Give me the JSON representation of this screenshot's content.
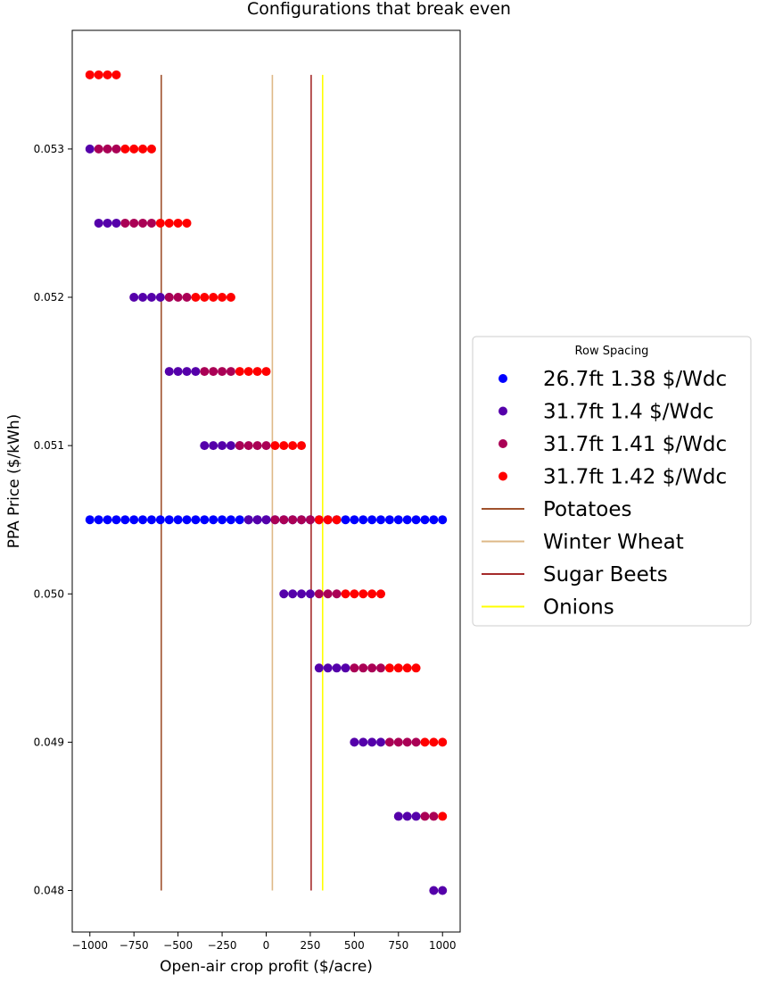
{
  "chart_data": {
    "type": "scatter",
    "title": "Configurations that break even",
    "xlabel": "Open-air crop profit ($/acre)",
    "ylabel": "PPA Price ($/kWh)",
    "xlim": [
      -1100,
      1100
    ],
    "ylim": [
      0.04772,
      0.0538
    ],
    "x_ticks": [
      -1000,
      -750,
      -500,
      -250,
      0,
      250,
      500,
      750,
      1000
    ],
    "x_tick_labels": [
      "−1000",
      "−750",
      "−500",
      "−250",
      "0",
      "250",
      "500",
      "750",
      "1000"
    ],
    "y_ticks": [
      0.048,
      0.049,
      0.05,
      0.051,
      0.052,
      0.053
    ],
    "y_tick_labels": [
      "0.048",
      "0.049",
      "0.050",
      "0.051",
      "0.052",
      "0.053"
    ],
    "grid": false,
    "legend": {
      "title": "Row Spacing",
      "placement": "center-right outside"
    },
    "series": [
      {
        "name": "26.7ft 1.38 $/Wdc",
        "color": "#0000ff",
        "points": [
          {
            "y": 0.0505,
            "x_start": -1000,
            "x_end": 1000,
            "step": 50
          }
        ]
      },
      {
        "name": "31.7ft 1.4 $/Wdc",
        "color": "#5500aa",
        "points": [
          {
            "y": 0.053,
            "x_start": -1000,
            "x_end": -1000,
            "step": 50
          },
          {
            "y": 0.0525,
            "x_start": -950,
            "x_end": -850,
            "step": 50
          },
          {
            "y": 0.052,
            "x_start": -750,
            "x_end": -550,
            "step": 50
          },
          {
            "y": 0.0515,
            "x_start": -550,
            "x_end": -400,
            "step": 50
          },
          {
            "y": 0.051,
            "x_start": -350,
            "x_end": -150,
            "step": 50
          },
          {
            "y": 0.0505,
            "x_start": -100,
            "x_end": 0,
            "step": 50
          },
          {
            "y": 0.05,
            "x_start": 100,
            "x_end": 250,
            "step": 50
          },
          {
            "y": 0.0495,
            "x_start": 300,
            "x_end": 450,
            "step": 50
          },
          {
            "y": 0.049,
            "x_start": 500,
            "x_end": 650,
            "step": 50
          },
          {
            "y": 0.0485,
            "x_start": 750,
            "x_end": 850,
            "step": 50
          },
          {
            "y": 0.048,
            "x_start": 950,
            "x_end": 1000,
            "step": 50
          }
        ]
      },
      {
        "name": "31.7ft 1.41 $/Wdc",
        "color": "#aa0055",
        "points": [
          {
            "y": 0.053,
            "x_start": -950,
            "x_end": -850,
            "step": 50
          },
          {
            "y": 0.0525,
            "x_start": -800,
            "x_end": -650,
            "step": 50
          },
          {
            "y": 0.052,
            "x_start": -550,
            "x_end": -450,
            "step": 50
          },
          {
            "y": 0.0515,
            "x_start": -350,
            "x_end": -200,
            "step": 50
          },
          {
            "y": 0.051,
            "x_start": -150,
            "x_end": 0,
            "step": 50
          },
          {
            "y": 0.0505,
            "x_start": 50,
            "x_end": 250,
            "step": 50
          },
          {
            "y": 0.05,
            "x_start": 300,
            "x_end": 400,
            "step": 50
          },
          {
            "y": 0.0495,
            "x_start": 500,
            "x_end": 650,
            "step": 50
          },
          {
            "y": 0.049,
            "x_start": 700,
            "x_end": 850,
            "step": 50
          },
          {
            "y": 0.0485,
            "x_start": 900,
            "x_end": 950,
            "step": 50
          }
        ]
      },
      {
        "name": "31.7ft 1.42 $/Wdc",
        "color": "#ff0000",
        "points": [
          {
            "y": 0.0535,
            "x_start": -1000,
            "x_end": -850,
            "step": 50
          },
          {
            "y": 0.053,
            "x_start": -800,
            "x_end": -650,
            "step": 50
          },
          {
            "y": 0.0525,
            "x_start": -600,
            "x_end": -450,
            "step": 50
          },
          {
            "y": 0.052,
            "x_start": -400,
            "x_end": -200,
            "step": 50
          },
          {
            "y": 0.0515,
            "x_start": -150,
            "x_end": 0,
            "step": 50
          },
          {
            "y": 0.051,
            "x_start": 50,
            "x_end": 200,
            "step": 50
          },
          {
            "y": 0.0505,
            "x_start": 300,
            "x_end": 400,
            "step": 50
          },
          {
            "y": 0.05,
            "x_start": 450,
            "x_end": 650,
            "step": 50
          },
          {
            "y": 0.0495,
            "x_start": 700,
            "x_end": 850,
            "step": 50
          },
          {
            "y": 0.049,
            "x_start": 900,
            "x_end": 1000,
            "step": 50
          },
          {
            "y": 0.0485,
            "x_start": 1000,
            "x_end": 1000,
            "step": 50
          }
        ]
      }
    ],
    "vlines": [
      {
        "name": "Potatoes",
        "x": -595,
        "color": "#a0522d",
        "ymin": 0.048,
        "ymax": 0.0535
      },
      {
        "name": "Winter Wheat",
        "x": 35,
        "color": "#deb887",
        "ymin": 0.048,
        "ymax": 0.0535
      },
      {
        "name": "Sugar Beets",
        "x": 255,
        "color": "#a52a2a",
        "ymin": 0.048,
        "ymax": 0.0535
      },
      {
        "name": "Onions",
        "x": 320,
        "color": "#ffff00",
        "ymin": 0.048,
        "ymax": 0.0535
      }
    ]
  }
}
